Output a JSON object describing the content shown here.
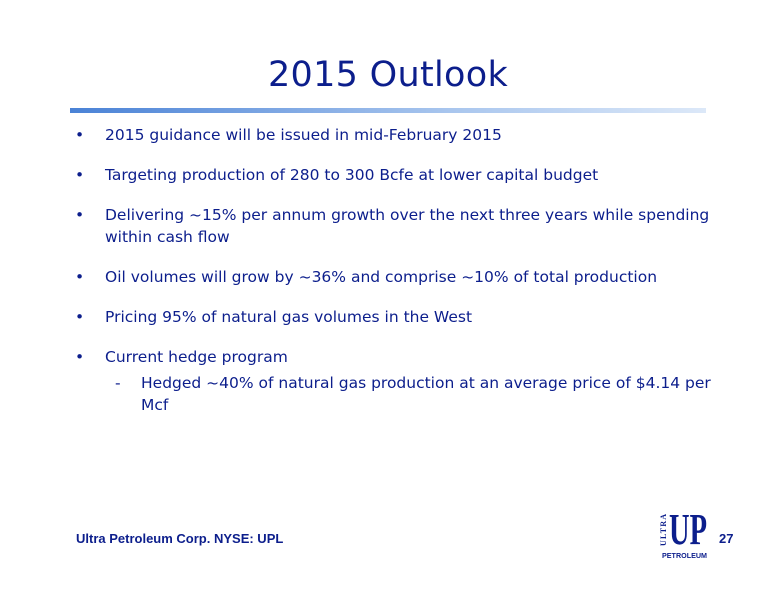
{
  "slide": {
    "title": "2015 Outlook",
    "bullets": [
      {
        "text": "2015 guidance will be issued in mid-February 2015"
      },
      {
        "text": "Targeting production of 280 to 300 Bcfe at lower capital budget"
      },
      {
        "text": "Delivering ~15% per annum growth over the next three years while spending within cash flow"
      },
      {
        "text": "Oil volumes will grow by ~36% and comprise ~10% of total production"
      },
      {
        "text": "Pricing 95% of natural gas volumes in the West"
      },
      {
        "text": "Current hedge program"
      }
    ],
    "sub_bullets": [
      {
        "text": "Hedged ~40% of natural gas production at an average price of $4.14 per Mcf"
      }
    ],
    "bullet_glyph": "•",
    "sub_glyph": "-"
  },
  "footer": {
    "company": "Ultra Petroleum Corp. NYSE: UPL",
    "page_number": "27"
  },
  "logo": {
    "word_ultra": "ULTRA",
    "letters": "UP",
    "word_petroleum": "PETROLEUM",
    "color": "#0c1e8c"
  },
  "colors": {
    "text": "#0c1e8c",
    "rule": "#4a82d6"
  }
}
